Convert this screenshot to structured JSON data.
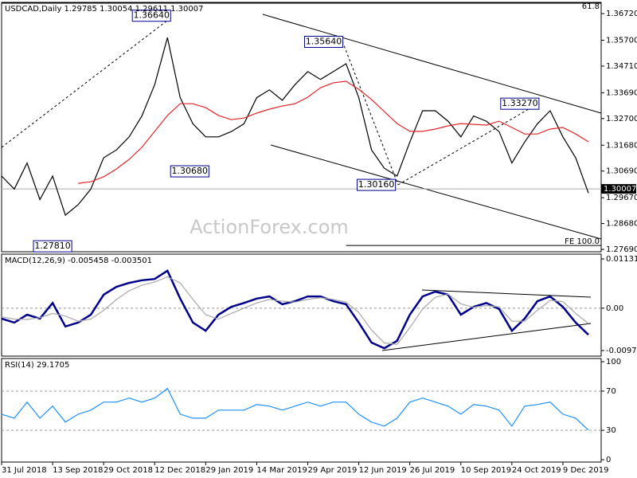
{
  "chart_data": [
    {
      "type": "line",
      "title": "USDCAD,Daily  1.29785 1.30054 1.29611 1.30007",
      "watermark": "ActionForex.com",
      "x": [
        0,
        8,
        16,
        24,
        32,
        40,
        48,
        56,
        64,
        72,
        80,
        88,
        96,
        104,
        112,
        120,
        128,
        136,
        144,
        152,
        160,
        168,
        176,
        184,
        192,
        200,
        208,
        216,
        224,
        232,
        240,
        248,
        256,
        264,
        272,
        280,
        288,
        296,
        304,
        312,
        320,
        328,
        336,
        344,
        352,
        360,
        368
      ],
      "xlim": [
        0,
        376
      ],
      "ylim": [
        1.276,
        1.3715
      ],
      "yticks": [
        {
          "value": 1.3672,
          "label": "1.36720"
        },
        {
          "value": 1.357,
          "label": "1.35700"
        },
        {
          "value": 1.3471,
          "label": "1.34710"
        },
        {
          "value": 1.3369,
          "label": "1.33690"
        },
        {
          "value": 1.327,
          "label": "1.32700"
        },
        {
          "value": 1.3168,
          "label": "1.31680"
        },
        {
          "value": 1.3069,
          "label": "1.30690"
        },
        {
          "value": 1.2967,
          "label": "1.29670"
        },
        {
          "value": 1.2868,
          "label": "1.28680"
        },
        {
          "value": 1.2769,
          "label": "1.27690"
        }
      ],
      "grid": false,
      "series": [
        {
          "color": "#000000",
          "values": [
            1.305,
            1.3,
            1.31,
            1.296,
            1.305,
            1.29,
            1.294,
            1.3,
            1.312,
            1.315,
            1.32,
            1.328,
            1.34,
            1.358,
            1.335,
            1.325,
            1.32,
            1.32,
            1.322,
            1.325,
            1.335,
            1.338,
            1.334,
            1.34,
            1.345,
            1.342,
            1.345,
            1.348,
            1.335,
            1.315,
            1.308,
            1.305,
            1.318,
            1.33,
            1.33,
            1.326,
            1.32,
            1.328,
            1.326,
            1.322,
            1.31,
            1.318,
            1.325,
            1.33,
            1.32,
            1.312,
            1.2985
          ]
        },
        {
          "color": "#e3262b",
          "values": [
            null,
            null,
            null,
            null,
            null,
            null,
            1.3022,
            1.3028,
            1.3047,
            1.3077,
            1.3114,
            1.316,
            1.3221,
            1.3282,
            1.3327,
            1.3327,
            1.3312,
            1.3282,
            1.3266,
            1.3272,
            1.3291,
            1.3306,
            1.3318,
            1.3327,
            1.3352,
            1.3388,
            1.3407,
            1.3413,
            1.3382,
            1.3343,
            1.3297,
            1.3251,
            1.3221,
            1.3221,
            1.323,
            1.3242,
            1.3251,
            1.3248,
            1.3245,
            1.326,
            1.3236,
            1.3211,
            1.3211,
            1.323,
            1.3236,
            1.3211,
            1.3181
          ]
        }
      ],
      "annotations": [
        {
          "value": 1.3664,
          "label": "1.36640",
          "x": 106
        },
        {
          "value": 1.3564,
          "label": "1.35640",
          "x": 214
        },
        {
          "value": 1.3327,
          "label": "1.33270",
          "x": 337
        },
        {
          "value": 1.3068,
          "label": "1.30680",
          "x": 130
        },
        {
          "value": 1.3016,
          "label": "1.30160",
          "x": 247
        },
        {
          "value": 1.2781,
          "label": "1.27810",
          "x": 44
        }
      ],
      "levels": [
        {
          "value": 1.3712,
          "label": "61.8"
        },
        {
          "value": 1.2784,
          "label": "FE 100.0",
          "from": 216
        }
      ],
      "last_price": {
        "value": 1.30007,
        "label": "1.30007"
      }
    },
    {
      "type": "line",
      "title": "MACD(12,26,9) -0.005458 -0.003501",
      "x": [
        0,
        8,
        16,
        24,
        32,
        40,
        48,
        56,
        64,
        72,
        80,
        88,
        96,
        104,
        112,
        120,
        128,
        136,
        144,
        152,
        160,
        168,
        176,
        184,
        192,
        200,
        208,
        216,
        224,
        232,
        240,
        248,
        256,
        264,
        272,
        280,
        288,
        296,
        304,
        312,
        320,
        328,
        336,
        344,
        352,
        360,
        368
      ],
      "xlim": [
        0,
        376
      ],
      "ylim": [
        -0.01101,
        0.01241
      ],
      "yticks": [
        0.011313,
        {
          "value": 0,
          "label": "0.00"
        },
        -0.009729
      ],
      "grid": true,
      "series": [
        {
          "color": "#00008b",
          "values": [
            -0.0024,
            -0.0033,
            -0.0015,
            -0.0024,
            0.0012,
            -0.0042,
            -0.0033,
            -0.0015,
            0.0031,
            0.0049,
            0.0058,
            0.0064,
            0.0067,
            0.0086,
            0.0022,
            -0.0033,
            -0.0052,
            -0.0015,
            0.0003,
            0.0012,
            0.0022,
            0.0027,
            0.0009,
            0.0016,
            0.0027,
            0.0027,
            0.0016,
            0.0009,
            -0.0033,
            -0.0079,
            -0.0092,
            -0.0075,
            -0.0015,
            0.0027,
            0.0038,
            0.0031,
            -0.0015,
            0.0003,
            0.0012,
            -0.0002,
            -0.0052,
            -0.0024,
            0.0016,
            0.0027,
            0.0003,
            -0.0033,
            -0.0061
          ]
        },
        {
          "color": "#a9a9a9",
          "values": [
            -0.002,
            -0.0025,
            -0.0026,
            -0.0022,
            -0.0012,
            -0.0018,
            -0.003,
            -0.0025,
            -0.0005,
            0.002,
            0.004,
            0.0053,
            0.006,
            0.0072,
            0.0058,
            0.002,
            -0.0015,
            -0.0025,
            -0.0012,
            0.0,
            0.0012,
            0.002,
            0.0016,
            0.0014,
            0.002,
            0.0024,
            0.002,
            0.0014,
            -0.001,
            -0.005,
            -0.008,
            -0.0083,
            -0.0045,
            -0.0002,
            0.0025,
            0.0032,
            0.001,
            0.0002,
            0.0006,
            0.0003,
            -0.003,
            -0.003,
            -0.0005,
            0.0018,
            0.0015,
            -0.0012,
            -0.0035
          ]
        }
      ]
    },
    {
      "type": "line",
      "title": "RSI(14) 29.1705",
      "x": [
        0,
        8,
        16,
        24,
        32,
        40,
        48,
        56,
        64,
        72,
        80,
        88,
        96,
        104,
        112,
        120,
        128,
        136,
        144,
        152,
        160,
        168,
        176,
        184,
        192,
        200,
        208,
        216,
        224,
        232,
        240,
        248,
        256,
        264,
        272,
        280,
        288,
        296,
        304,
        312,
        320,
        328,
        336,
        344,
        352,
        360,
        368
      ],
      "xlim": [
        0,
        376
      ],
      "ylim": [
        -2.4,
        103.3
      ],
      "yticks": [
        100,
        70,
        30,
        0
      ],
      "grid": true,
      "xticks": [
        {
          "value": 0,
          "label": "31 Jul 2018"
        },
        {
          "value": 32,
          "label": "13 Sep 2018"
        },
        {
          "value": 64,
          "label": "29 Oct 2018"
        },
        {
          "value": 96,
          "label": "12 Dec 2018"
        },
        {
          "value": 128,
          "label": "29 Jan 2019"
        },
        {
          "value": 160,
          "label": "14 Mar 2019"
        },
        {
          "value": 192,
          "label": "29 Apr 2019"
        },
        {
          "value": 224,
          "label": "12 Jun 2019"
        },
        {
          "value": 256,
          "label": "26 Jul 2019"
        },
        {
          "value": 288,
          "label": "10 Sep 2019"
        },
        {
          "value": 320,
          "label": "24 Oct 2019"
        },
        {
          "value": 352,
          "label": "9 Dec 2019"
        }
      ],
      "series": [
        {
          "color": "#1e90ff",
          "values": [
            46.5,
            42.4,
            58.8,
            42.4,
            54.7,
            38.4,
            46.5,
            50.6,
            58.8,
            58.8,
            62.9,
            58.8,
            62.9,
            72.7,
            46.5,
            42.4,
            42.4,
            50.6,
            50.6,
            50.6,
            56.3,
            54.7,
            50.6,
            54.7,
            58.8,
            54.7,
            58.8,
            58.8,
            46.5,
            38.4,
            34.3,
            42.4,
            58.8,
            62.9,
            58.8,
            54.7,
            46.5,
            56.3,
            54.7,
            50.6,
            34.3,
            54.7,
            56.3,
            58.8,
            46.5,
            42.4,
            30.2
          ]
        }
      ]
    }
  ]
}
